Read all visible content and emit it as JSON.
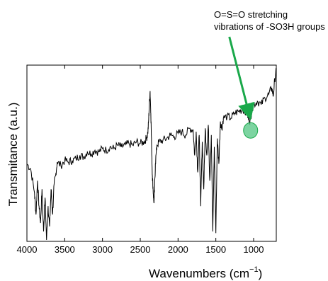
{
  "chart_data": {
    "type": "line",
    "xlabel": "Wavenumbers",
    "xlabel_unit": "(cm",
    "xlabel_unit_sup": "−1",
    "xlabel_unit_close": ")",
    "ylabel": "Transmitance (a.u.)",
    "xlim": [
      4000,
      700
    ],
    "x_reversed": true,
    "y_ticks_shown": false,
    "grid": false,
    "x_ticks": [
      4000,
      3500,
      3000,
      2500,
      2000,
      1500,
      1000
    ],
    "x_tick_labels": [
      "4000",
      "3500",
      "3000",
      "2500",
      "2000",
      "1500",
      "1000"
    ],
    "series": [
      {
        "color": "#000000",
        "x": [
          4000,
          3950,
          3900,
          3880,
          3860,
          3840,
          3820,
          3800,
          3780,
          3760,
          3740,
          3720,
          3700,
          3680,
          3660,
          3640,
          3620,
          3600,
          3550,
          3500,
          3450,
          3400,
          3350,
          3300,
          3250,
          3200,
          3150,
          3100,
          3050,
          3000,
          2950,
          2900,
          2850,
          2800,
          2750,
          2700,
          2650,
          2600,
          2550,
          2500,
          2450,
          2420,
          2400,
          2390,
          2380,
          2370,
          2360,
          2350,
          2340,
          2330,
          2320,
          2310,
          2300,
          2280,
          2250,
          2200,
          2150,
          2100,
          2050,
          2000,
          1950,
          1900,
          1850,
          1800,
          1780,
          1760,
          1740,
          1720,
          1700,
          1680,
          1660,
          1640,
          1620,
          1600,
          1580,
          1560,
          1540,
          1520,
          1500,
          1480,
          1460,
          1440,
          1420,
          1400,
          1350,
          1300,
          1250,
          1200,
          1150,
          1100,
          1080,
          1060,
          1040,
          1020,
          1000,
          950,
          900,
          850,
          800,
          760,
          740,
          720,
          700
        ],
        "values": [
          0.45,
          0.42,
          0.28,
          0.15,
          0.35,
          0.2,
          0.1,
          0.3,
          0.05,
          0.25,
          0.0,
          0.2,
          0.08,
          0.3,
          0.15,
          0.33,
          0.38,
          0.46,
          0.44,
          0.47,
          0.46,
          0.47,
          0.48,
          0.5,
          0.49,
          0.52,
          0.51,
          0.53,
          0.52,
          0.54,
          0.53,
          0.55,
          0.54,
          0.56,
          0.55,
          0.56,
          0.57,
          0.56,
          0.58,
          0.57,
          0.58,
          0.6,
          0.63,
          0.7,
          0.8,
          0.88,
          0.75,
          0.55,
          0.38,
          0.3,
          0.22,
          0.3,
          0.45,
          0.56,
          0.58,
          0.59,
          0.6,
          0.62,
          0.61,
          0.63,
          0.64,
          0.62,
          0.66,
          0.65,
          0.5,
          0.64,
          0.4,
          0.62,
          0.2,
          0.58,
          0.3,
          0.66,
          0.5,
          0.68,
          0.35,
          0.62,
          0.05,
          0.55,
          0.04,
          0.6,
          0.45,
          0.7,
          0.66,
          0.72,
          0.73,
          0.72,
          0.75,
          0.76,
          0.77,
          0.76,
          0.74,
          0.7,
          0.72,
          0.78,
          0.8,
          0.82,
          0.8,
          0.84,
          0.86,
          0.9,
          0.85,
          0.95,
          1.0
        ]
      }
    ],
    "annotation": {
      "line1": "O=S=O stretching",
      "line2": "vibrations of -SO3H groups",
      "target_x": 1040,
      "target_y": 0.66,
      "arrow_color": "#1aa84a",
      "marker_color": "#5dc98a"
    }
  }
}
